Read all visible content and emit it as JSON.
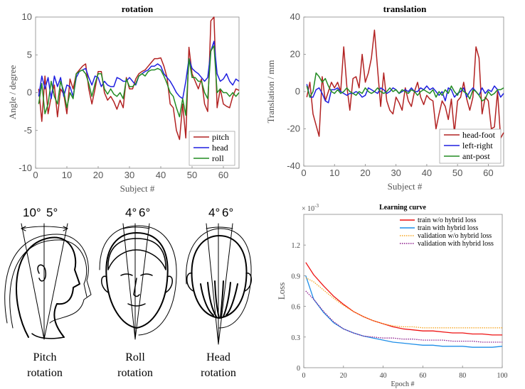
{
  "chart_data": [
    {
      "id": "rotation",
      "type": "line",
      "title": "rotation",
      "xlabel": "Subject #",
      "ylabel": "Angle / degree",
      "xlim": [
        0,
        65
      ],
      "ylim": [
        -10,
        10
      ],
      "xticks": [
        0,
        10,
        20,
        30,
        40,
        50,
        60
      ],
      "yticks": [
        -10,
        -5,
        0,
        5,
        10
      ],
      "legend_position": "bottom-right",
      "x": [
        1,
        2,
        3,
        4,
        5,
        6,
        7,
        8,
        9,
        10,
        11,
        12,
        13,
        14,
        15,
        16,
        17,
        18,
        19,
        20,
        21,
        22,
        23,
        24,
        25,
        26,
        27,
        28,
        29,
        30,
        31,
        32,
        33,
        34,
        35,
        36,
        37,
        38,
        39,
        40,
        41,
        42,
        43,
        44,
        45,
        46,
        47,
        48,
        49,
        50,
        51,
        52,
        53,
        54,
        55,
        56,
        57,
        58,
        59,
        60,
        61,
        62,
        63,
        64,
        65
      ],
      "series": [
        {
          "name": "pitch",
          "color": "#b22222",
          "values": [
            0.5,
            -3.8,
            2.2,
            -2.8,
            -0.5,
            1.0,
            -3.2,
            0.5,
            -0.2,
            -2.8,
            1.8,
            0.5,
            2.5,
            3.0,
            3.5,
            3.8,
            0.5,
            -1.5,
            0.5,
            2.8,
            2.8,
            0.0,
            -1.0,
            -0.5,
            -1.2,
            -2.2,
            -1.0,
            -2.0,
            2.0,
            0.5,
            0.5,
            1.8,
            2.5,
            2.8,
            3.0,
            3.5,
            4.0,
            4.5,
            4.5,
            4.6,
            3.5,
            2.0,
            -1.5,
            -2.0,
            -5.0,
            -6.2,
            -1.5,
            -6.0,
            6.0,
            2.5,
            1.5,
            0.5,
            1.8,
            -1.5,
            -2.5,
            9.5,
            10.0,
            -2.0,
            0.5,
            -1.5,
            -1.8,
            -2.0,
            -0.5,
            0.5,
            0.3
          ]
        },
        {
          "name": "head",
          "color": "#1f1fe0",
          "values": [
            -0.5,
            2.2,
            0.5,
            2.0,
            -0.8,
            2.2,
            0.8,
            2.0,
            -0.5,
            1.0,
            0.8,
            -0.5,
            2.0,
            2.8,
            3.0,
            3.2,
            2.0,
            1.0,
            2.2,
            2.0,
            0.8,
            1.5,
            1.0,
            0.8,
            0.8,
            2.0,
            1.8,
            1.5,
            1.5,
            2.0,
            1.5,
            1.0,
            2.2,
            2.5,
            2.8,
            3.0,
            3.5,
            3.5,
            3.8,
            3.5,
            2.5,
            2.0,
            1.5,
            0.8,
            0.0,
            -0.5,
            -0.8,
            1.5,
            4.5,
            3.2,
            2.8,
            2.5,
            2.0,
            1.5,
            2.0,
            5.5,
            6.8,
            2.5,
            1.5,
            1.8,
            2.5,
            1.5,
            1.0,
            1.8,
            1.5
          ]
        },
        {
          "name": "roll",
          "color": "#228b22",
          "values": [
            -1.5,
            1.2,
            -2.8,
            -1.5,
            1.5,
            -0.5,
            -1.5,
            1.5,
            0.2,
            -2.0,
            0.0,
            -0.8,
            2.5,
            2.8,
            3.0,
            2.5,
            1.2,
            -0.5,
            1.2,
            2.5,
            2.5,
            0.5,
            -0.2,
            0.5,
            -0.2,
            -0.5,
            0.0,
            -0.8,
            1.8,
            0.8,
            0.8,
            1.2,
            2.2,
            2.5,
            2.2,
            2.8,
            3.0,
            3.0,
            3.2,
            3.0,
            2.2,
            1.2,
            0.0,
            -0.5,
            -2.0,
            -3.2,
            -0.8,
            -3.0,
            4.5,
            2.0,
            2.0,
            1.5,
            1.5,
            0.0,
            -0.8,
            5.5,
            6.2,
            0.0,
            0.5,
            0.0,
            0.0,
            -0.5,
            0.0,
            -0.5,
            0.0
          ]
        }
      ]
    },
    {
      "id": "translation",
      "type": "line",
      "title": "translation",
      "xlabel": "Subject #",
      "ylabel": "Translation / mm",
      "xlim": [
        0,
        65
      ],
      "ylim": [
        -40,
        40
      ],
      "xticks": [
        0,
        10,
        20,
        30,
        40,
        50,
        60
      ],
      "yticks": [
        -40,
        -20,
        0,
        20,
        40
      ],
      "legend_position": "bottom-right",
      "x": [
        1,
        2,
        3,
        4,
        5,
        6,
        7,
        8,
        9,
        10,
        11,
        12,
        13,
        14,
        15,
        16,
        17,
        18,
        19,
        20,
        21,
        22,
        23,
        24,
        25,
        26,
        27,
        28,
        29,
        30,
        31,
        32,
        33,
        34,
        35,
        36,
        37,
        38,
        39,
        40,
        41,
        42,
        43,
        44,
        45,
        46,
        47,
        48,
        49,
        50,
        51,
        52,
        53,
        54,
        55,
        56,
        57,
        58,
        59,
        60,
        61,
        62,
        63,
        64,
        65
      ],
      "series": [
        {
          "name": "head-foot",
          "color": "#b22222",
          "values": [
            -3,
            5,
            -12,
            -18,
            -24,
            8,
            -5,
            0,
            5,
            2,
            5,
            0,
            24,
            3,
            -10,
            7,
            8,
            2,
            20,
            5,
            10,
            18,
            33,
            12,
            -8,
            10,
            -5,
            -10,
            -12,
            -3,
            -6,
            -10,
            2,
            -5,
            -8,
            0,
            5,
            -3,
            -7,
            -2,
            -4,
            -5,
            -20,
            -12,
            -5,
            -8,
            -15,
            -4,
            -22,
            -5,
            -3,
            5,
            -4,
            -10,
            -3,
            24,
            18,
            -12,
            -3,
            -5,
            -20,
            -19,
            0,
            -25,
            -22
          ]
        },
        {
          "name": "left-right",
          "color": "#1f1fe0",
          "values": [
            4,
            -3,
            -3,
            1,
            2,
            -1,
            -5,
            -6,
            1,
            1,
            2,
            0,
            -1,
            -2,
            -1,
            -1,
            0,
            -1,
            -3,
            -2,
            2,
            1,
            0,
            -1,
            2,
            1,
            -1,
            0,
            2,
            1,
            -1,
            0,
            1,
            0,
            2,
            0,
            0,
            2,
            1,
            3,
            1,
            2,
            0,
            -2,
            0,
            -5,
            2,
            1,
            -3,
            -1,
            0,
            2,
            -3,
            0,
            2,
            0,
            -2,
            2,
            -1,
            1,
            0,
            3,
            1,
            -3,
            -1
          ]
        },
        {
          "name": "ant-post",
          "color": "#228b22",
          "values": [
            3,
            -3,
            0,
            10,
            8,
            5,
            7,
            3,
            0,
            -1,
            1,
            -1,
            0,
            2,
            0,
            -1,
            -2,
            0,
            -1,
            2,
            0,
            -1,
            0,
            2,
            0,
            -1,
            0,
            2,
            0,
            1,
            -1,
            1,
            0,
            -1,
            1,
            0,
            -2,
            0,
            1,
            0,
            -1,
            1,
            -3,
            0,
            -2,
            1,
            -1,
            3,
            0,
            -2,
            2,
            0,
            -1,
            -4,
            1,
            0,
            -2,
            -5,
            -4,
            0,
            -2,
            -1,
            1,
            1,
            2
          ]
        }
      ]
    },
    {
      "id": "learning",
      "type": "line",
      "title": "Learning curve",
      "xlabel": "Epoch #",
      "ylabel": "Loss",
      "scale_label": "× 10",
      "scale_exponent": "-3",
      "xlim": [
        0,
        100
      ],
      "ylim": [
        0,
        1.5
      ],
      "xticks": [
        0,
        20,
        40,
        60,
        80,
        100
      ],
      "yticks": [
        0,
        0.3,
        0.6,
        0.9,
        1.2
      ],
      "ytick_labels": [
        "0",
        "0.3",
        "0.6",
        "0.9",
        "1.2"
      ],
      "legend_position": "top-right",
      "x": [
        1,
        5,
        10,
        15,
        20,
        25,
        30,
        35,
        40,
        45,
        50,
        55,
        60,
        65,
        70,
        75,
        80,
        85,
        90,
        95,
        100
      ],
      "series": [
        {
          "name": "train w/o hybrid loss",
          "color": "#ee1111",
          "style": "solid",
          "values": [
            1.03,
            0.91,
            0.8,
            0.7,
            0.62,
            0.55,
            0.5,
            0.46,
            0.43,
            0.4,
            0.38,
            0.37,
            0.36,
            0.36,
            0.35,
            0.34,
            0.34,
            0.33,
            0.33,
            0.32,
            0.32
          ]
        },
        {
          "name": "train with hybrid loss",
          "color": "#1e8ee8",
          "style": "solid",
          "values": [
            0.9,
            0.67,
            0.54,
            0.44,
            0.38,
            0.34,
            0.31,
            0.29,
            0.27,
            0.25,
            0.24,
            0.23,
            0.22,
            0.22,
            0.21,
            0.21,
            0.21,
            0.2,
            0.2,
            0.2,
            0.21
          ]
        },
        {
          "name": "validation w/o hybrid loss",
          "color": "#f5a623",
          "style": "dotted",
          "values": [
            0.88,
            0.84,
            0.76,
            0.68,
            0.61,
            0.55,
            0.5,
            0.46,
            0.43,
            0.41,
            0.4,
            0.4,
            0.39,
            0.39,
            0.39,
            0.39,
            0.39,
            0.39,
            0.39,
            0.39,
            0.39
          ]
        },
        {
          "name": "validation with hybrid loss",
          "color": "#8b1a8b",
          "style": "dotted",
          "values": [
            0.75,
            0.67,
            0.55,
            0.45,
            0.38,
            0.34,
            0.31,
            0.3,
            0.29,
            0.29,
            0.28,
            0.28,
            0.27,
            0.27,
            0.27,
            0.26,
            0.26,
            0.26,
            0.25,
            0.25,
            0.25
          ]
        }
      ]
    }
  ],
  "illustration": {
    "pitch": {
      "left_angle": "10°",
      "right_angle": "5°",
      "caption_line1": "Pitch",
      "caption_line2": "rotation"
    },
    "roll": {
      "left_angle": "4°",
      "right_angle": "6°",
      "caption_line1": "Roll",
      "caption_line2": "rotation"
    },
    "head": {
      "left_angle": "4°",
      "right_angle": "6°",
      "caption_line1": "Head",
      "caption_line2": "rotation"
    }
  }
}
